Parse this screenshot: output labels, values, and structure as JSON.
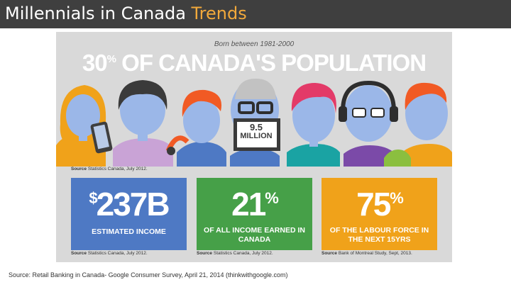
{
  "slide": {
    "title_main": "Millennials in Canada ",
    "title_accent": "Trends",
    "title_accent_color": "#f2a93b"
  },
  "infographic": {
    "born": "Born between 1981-2000",
    "headline_number": "30",
    "headline_sup": "%",
    "headline_text": " OF CANADA'S POPULATION",
    "sign_number": "9.5",
    "sign_label": "MILLION",
    "source_top": "Statistics Canada, July 2012.",
    "source_prefix": "Source",
    "cards": [
      {
        "value_prefix": "$",
        "value": "237B",
        "value_sup": "",
        "desc": "ESTIMATED INCOME",
        "source": "Statistics Canada, July 2012.",
        "color": "#4e79c4"
      },
      {
        "value_prefix": "",
        "value": "21",
        "value_sup": "%",
        "desc": "OF ALL INCOME EARNED IN CANADA",
        "source": "Statistics Canada, July 2012.",
        "color": "#46a048"
      },
      {
        "value_prefix": "",
        "value": "75",
        "value_sup": "%",
        "desc": "OF THE LABOUR FORCE IN THE NEXT 15YRS",
        "source": "Bank of Montreal Study, Sept, 2013.",
        "color": "#f0a21a"
      }
    ]
  },
  "footer": "Source: Retail Banking in Canada- Google Consumer Survey, April 21, 2014 (thinkwithgoogle.com)"
}
